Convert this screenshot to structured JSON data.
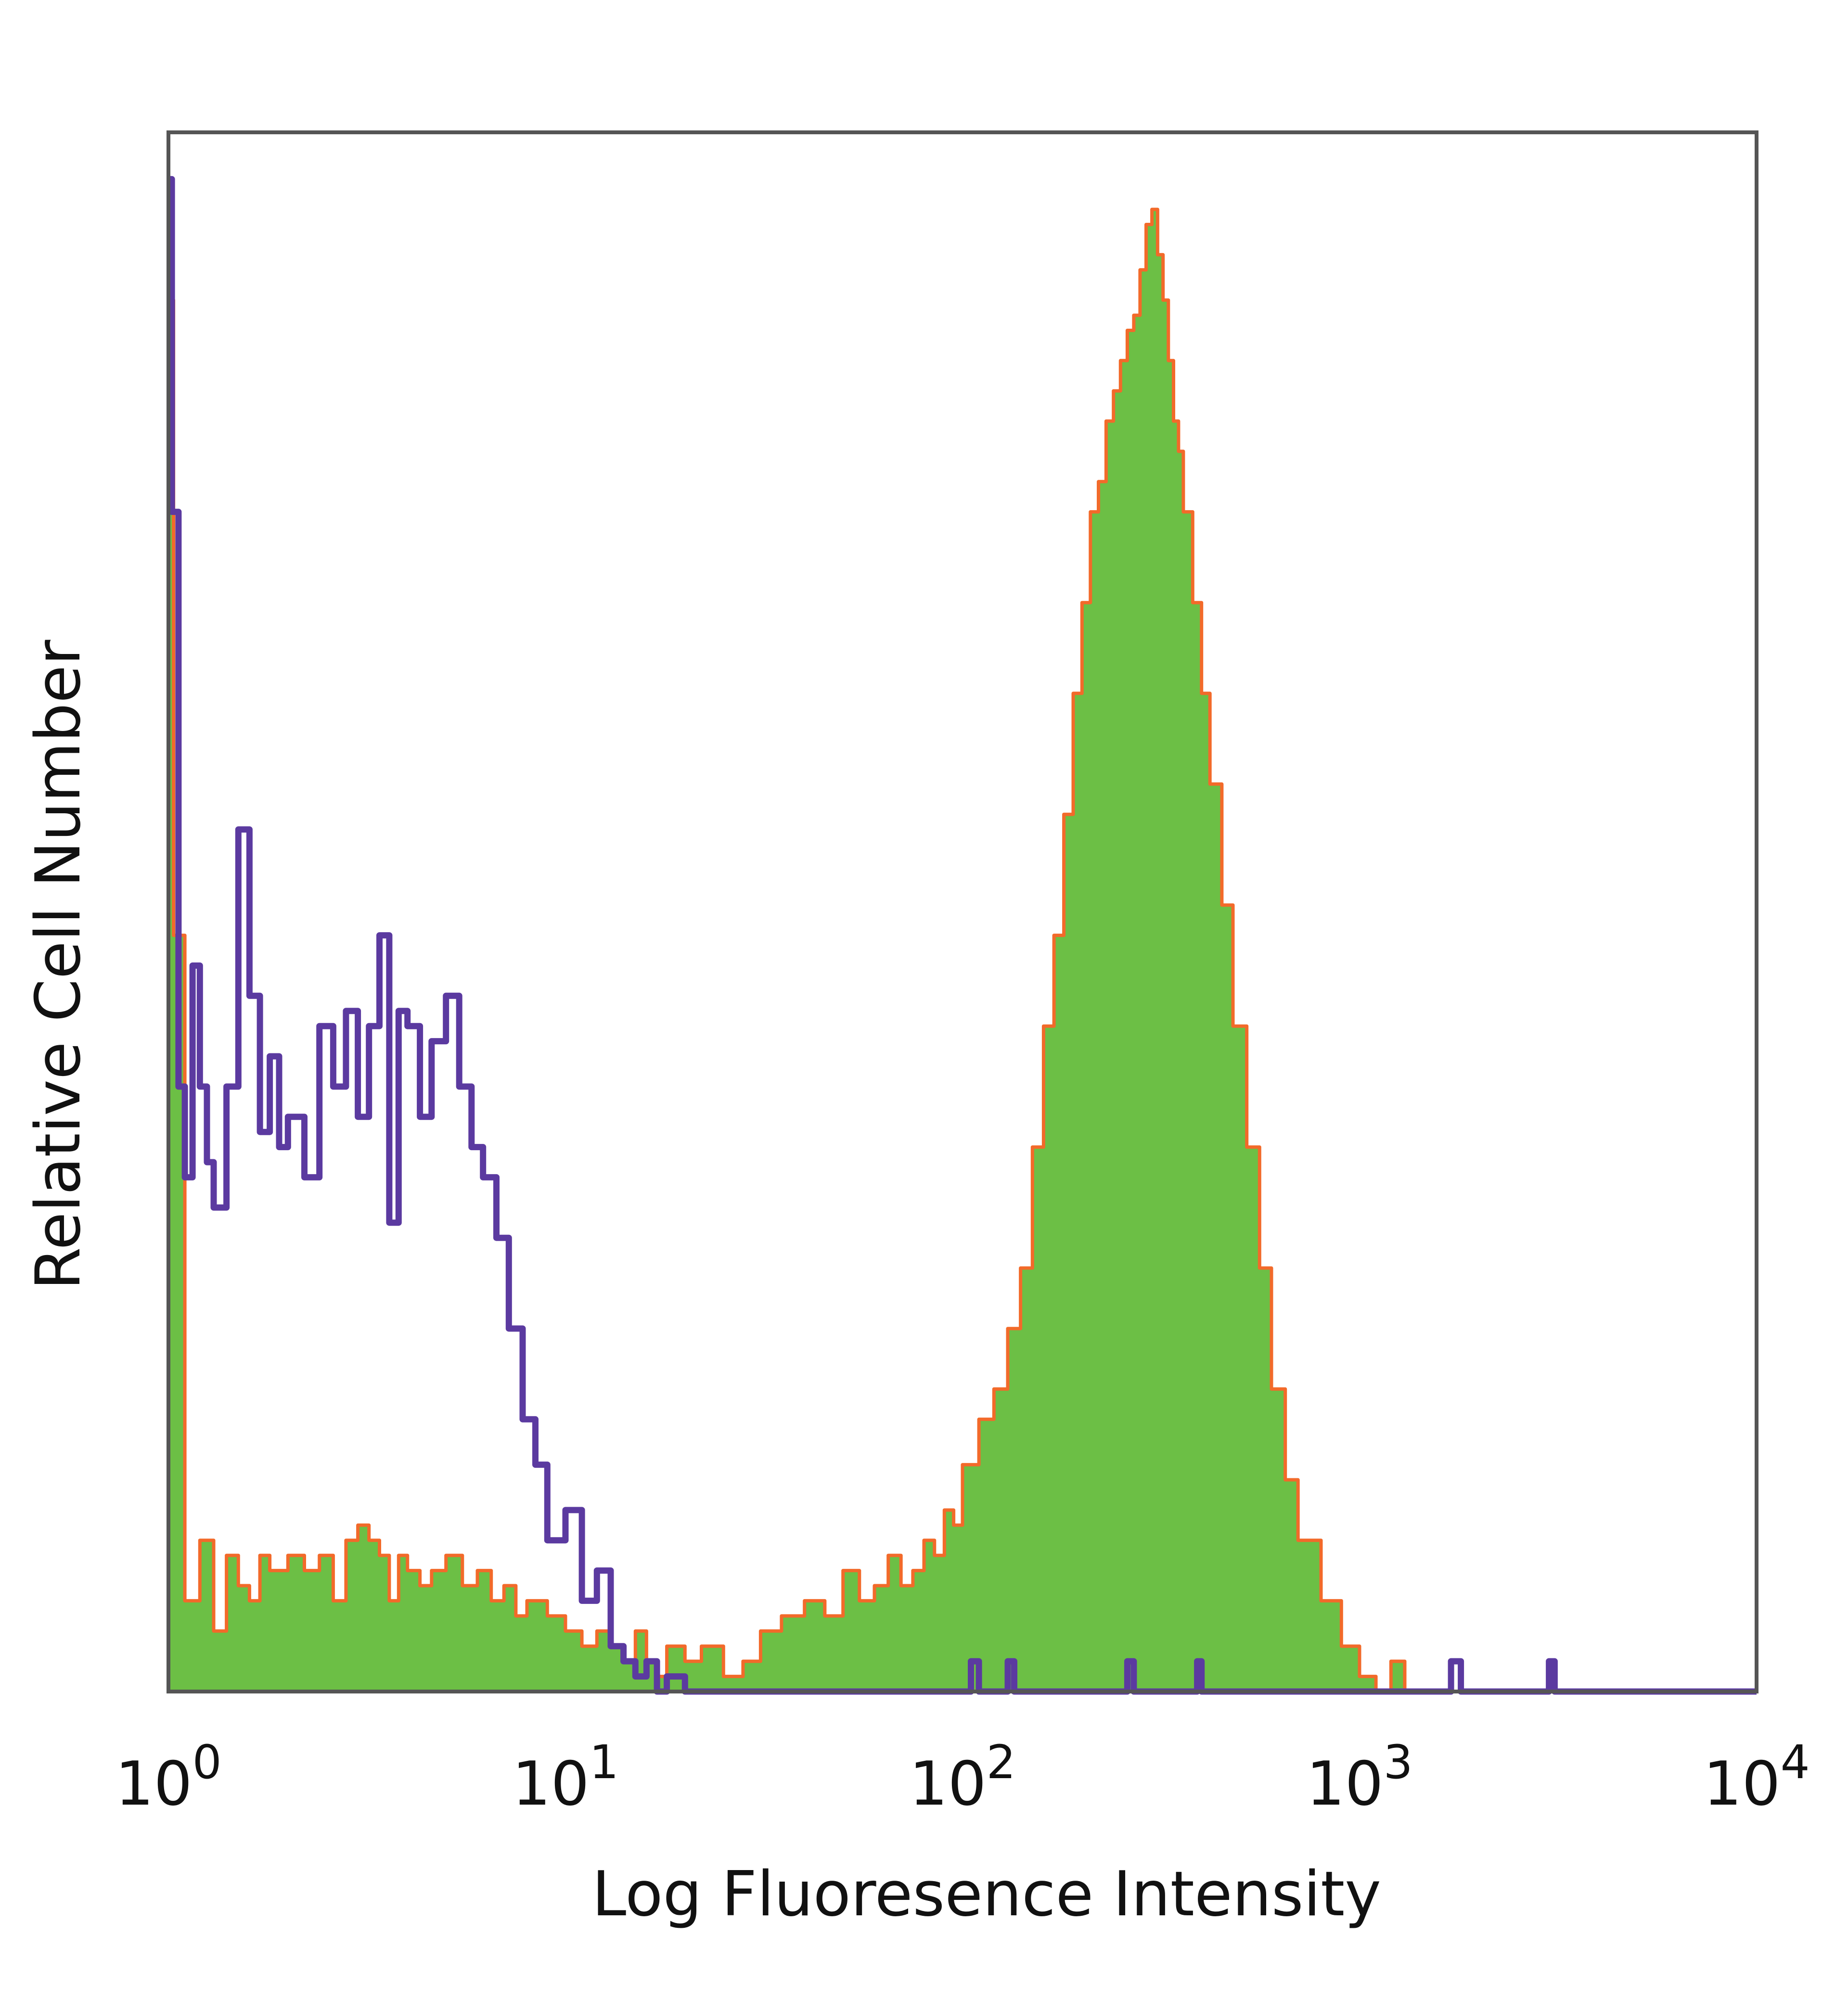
{
  "chart_data": {
    "type": "area",
    "xlabel": "Log Fluoresence Intensity",
    "ylabel": "Relative Cell Number",
    "x_scale": "log",
    "xlim": [
      1,
      10000
    ],
    "ylim": [
      0,
      1
    ],
    "grid": false,
    "x_ticks": [
      {
        "base": "10",
        "exp": "0"
      },
      {
        "base": "10",
        "exp": "1"
      },
      {
        "base": "10",
        "exp": "2"
      },
      {
        "base": "10",
        "exp": "3"
      },
      {
        "base": "10",
        "exp": "4"
      }
    ],
    "colors": {
      "purple_line": "#5b3aa0",
      "green_fill": "#6cbf45",
      "orange_line": "#f26a2a",
      "axes": "#555555"
    },
    "series": [
      {
        "style": "line",
        "color": "#5b3aa0",
        "x": [
          1.0,
          1.02,
          1.06,
          1.1,
          1.15,
          1.2,
          1.25,
          1.3,
          1.4,
          1.5,
          1.6,
          1.7,
          1.8,
          1.9,
          2.0,
          2.2,
          2.4,
          2.6,
          2.8,
          3.0,
          3.2,
          3.4,
          3.6,
          3.8,
          4.0,
          4.3,
          4.6,
          5.0,
          5.4,
          5.8,
          6.2,
          6.7,
          7.2,
          7.8,
          8.4,
          9.0,
          10.0,
          11.0,
          12.0,
          13.0,
          14.0,
          15.0,
          16.0,
          17.0,
          18.0,
          20.0,
          25.0,
          30.0,
          40.0,
          60.0,
          100.0,
          105.0,
          110.0,
          125.0,
          130.0,
          135.0,
          200.0,
          250.0,
          260.0,
          270.0,
          380.0,
          390.0,
          400.0,
          1000.0,
          1600.0,
          1700.0,
          1800.0,
          2900.0,
          3000.0,
          3100.0,
          10000.0
        ],
        "y": [
          1.0,
          0.78,
          0.4,
          0.34,
          0.48,
          0.4,
          0.35,
          0.32,
          0.4,
          0.57,
          0.46,
          0.37,
          0.42,
          0.36,
          0.38,
          0.34,
          0.44,
          0.4,
          0.45,
          0.38,
          0.44,
          0.5,
          0.31,
          0.45,
          0.44,
          0.38,
          0.43,
          0.46,
          0.4,
          0.36,
          0.34,
          0.3,
          0.24,
          0.18,
          0.15,
          0.1,
          0.12,
          0.06,
          0.08,
          0.03,
          0.02,
          0.01,
          0.02,
          0.0,
          0.01,
          0.0,
          0.0,
          0.0,
          0.0,
          0.0,
          0.0,
          0.02,
          0.0,
          0.0,
          0.02,
          0.0,
          0.0,
          0.0,
          0.02,
          0.0,
          0.0,
          0.02,
          0.0,
          0.0,
          0.0,
          0.02,
          0.0,
          0.0,
          0.02,
          0.0,
          0.0
        ]
      },
      {
        "style": "filled",
        "color": "#6cbf45",
        "edge_color": "#f26a2a",
        "x": [
          1.0,
          1.03,
          1.1,
          1.2,
          1.3,
          1.4,
          1.5,
          1.6,
          1.7,
          1.8,
          2.0,
          2.2,
          2.4,
          2.6,
          2.8,
          3.0,
          3.2,
          3.4,
          3.6,
          3.8,
          4.0,
          4.3,
          4.6,
          5.0,
          5.5,
          6.0,
          6.5,
          7.0,
          7.5,
          8.0,
          9.0,
          10.0,
          11.0,
          12.0,
          13.0,
          14.0,
          15.0,
          16.0,
          17.0,
          18.0,
          20.0,
          22.0,
          25.0,
          28.0,
          31.0,
          35.0,
          40.0,
          45.0,
          50.0,
          55.0,
          60.0,
          65.0,
          70.0,
          75.0,
          80.0,
          85.0,
          90.0,
          95.0,
          100.0,
          110.0,
          120.0,
          130.0,
          140.0,
          150.0,
          160.0,
          170.0,
          180.0,
          190.0,
          200.0,
          210.0,
          220.0,
          230.0,
          240.0,
          250.0,
          260.0,
          270.0,
          280.0,
          290.0,
          300.0,
          310.0,
          320.0,
          330.0,
          340.0,
          350.0,
          360.0,
          380.0,
          400.0,
          420.0,
          450.0,
          480.0,
          520.0,
          560.0,
          600.0,
          650.0,
          700.0,
          800.0,
          900.0,
          1000.0,
          1100.0,
          1200.0,
          1300.0,
          1500.0,
          1700.0,
          2000.0,
          3000.0,
          10000.0
        ],
        "y": [
          0.92,
          0.5,
          0.06,
          0.1,
          0.04,
          0.09,
          0.07,
          0.06,
          0.09,
          0.08,
          0.09,
          0.08,
          0.09,
          0.06,
          0.1,
          0.11,
          0.1,
          0.09,
          0.06,
          0.09,
          0.08,
          0.07,
          0.08,
          0.09,
          0.07,
          0.08,
          0.06,
          0.07,
          0.05,
          0.06,
          0.05,
          0.04,
          0.03,
          0.04,
          0.03,
          0.02,
          0.04,
          0.02,
          0.01,
          0.03,
          0.02,
          0.03,
          0.01,
          0.02,
          0.04,
          0.05,
          0.06,
          0.05,
          0.08,
          0.06,
          0.07,
          0.09,
          0.07,
          0.08,
          0.1,
          0.09,
          0.12,
          0.11,
          0.15,
          0.18,
          0.2,
          0.24,
          0.28,
          0.36,
          0.44,
          0.5,
          0.58,
          0.66,
          0.72,
          0.78,
          0.8,
          0.84,
          0.86,
          0.88,
          0.9,
          0.91,
          0.94,
          0.97,
          0.98,
          0.95,
          0.92,
          0.88,
          0.84,
          0.82,
          0.78,
          0.72,
          0.66,
          0.6,
          0.52,
          0.44,
          0.36,
          0.28,
          0.2,
          0.14,
          0.1,
          0.06,
          0.03,
          0.01,
          0.0,
          0.02,
          0.0,
          0.0,
          0.0,
          0.0,
          0.0,
          0.0
        ]
      }
    ]
  }
}
